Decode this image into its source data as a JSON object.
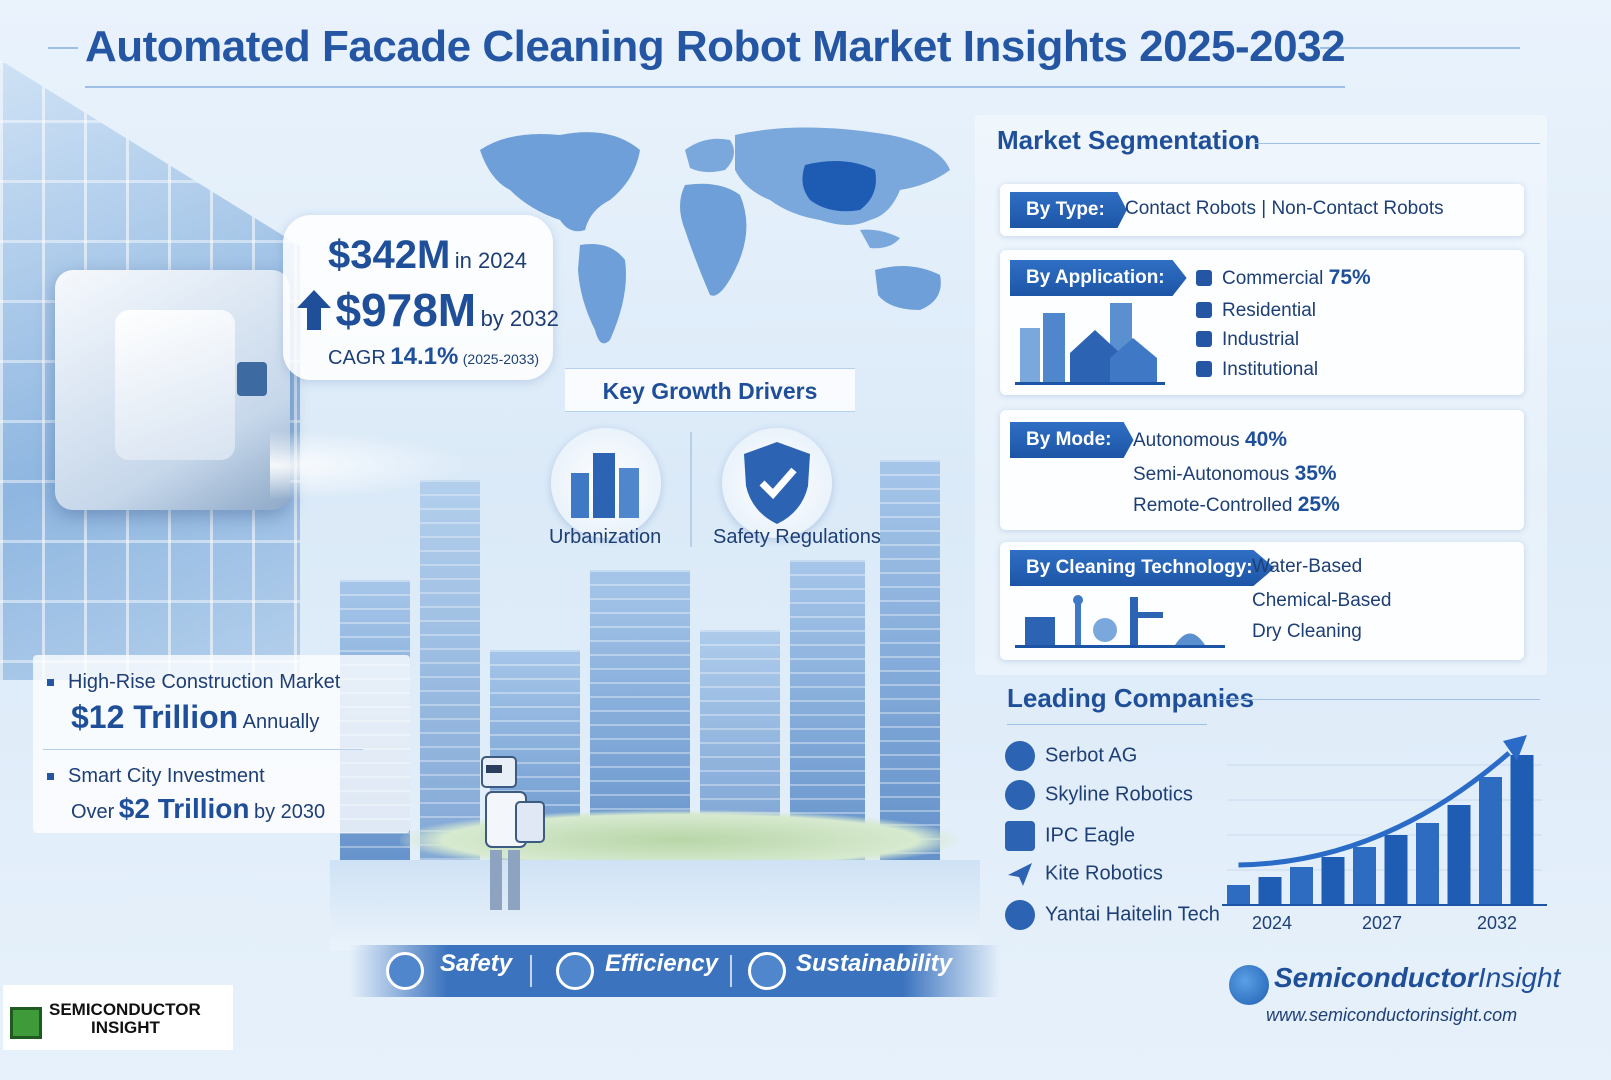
{
  "title": "Automated Facade Cleaning Robot Market Insights 2025-2032",
  "market_size": {
    "value_2024": "$342M",
    "label_2024": "in 2024",
    "value_2032": "$978M",
    "label_2032": "by 2032",
    "cagr_prefix": "CAGR",
    "cagr_value": "14.1%",
    "cagr_period": "(2025-2033)"
  },
  "key_growth_drivers": {
    "title": "Key Growth Drivers",
    "items": [
      "Urbanization",
      "Safety Regulations"
    ]
  },
  "left_stats": {
    "stat1_label": "High-Rise Construction Market",
    "stat1_value": "$12 Trillion",
    "stat1_suffix": "Annually",
    "stat2_label": "Smart City Investment",
    "stat2_prefix": "Over",
    "stat2_value": "$2 Trillion",
    "stat2_suffix": "by 2030"
  },
  "segmentation": {
    "title": "Market Segmentation",
    "by_type": {
      "tag": "By Type:",
      "text": "Contact Robots | Non-Contact Robots"
    },
    "by_application": {
      "tag": "By Application:",
      "items": [
        {
          "name": "Commercial",
          "value": "75%"
        },
        {
          "name": "Residential",
          "value": ""
        },
        {
          "name": "Industrial",
          "value": ""
        },
        {
          "name": "Institutional",
          "value": ""
        }
      ]
    },
    "by_mode": {
      "tag": "By Mode:",
      "items": [
        {
          "name": "Autonomous",
          "value": "40%"
        },
        {
          "name": "Semi-Autonomous",
          "value": "35%"
        },
        {
          "name": "Remote-Controlled",
          "value": "25%"
        }
      ]
    },
    "by_cleaning_technology": {
      "tag": "By Cleaning Technology:",
      "items": [
        "Water-Based",
        "Chemical-Based",
        "Dry Cleaning"
      ]
    }
  },
  "leading_companies": {
    "title": "Leading Companies",
    "items": [
      "Serbot AG",
      "Skyline Robotics",
      "IPC Eagle",
      "Kite Robotics",
      "Yantai Haitelin Tech"
    ]
  },
  "chart_data": {
    "type": "bar",
    "title": "",
    "xlabel": "",
    "ylabel": "",
    "x_tick_labels": [
      "2024",
      "2027",
      "2032"
    ],
    "values": [
      20,
      28,
      38,
      48,
      58,
      70,
      82,
      100,
      128,
      150
    ],
    "trend_arrow": true,
    "grid": true
  },
  "pillars": [
    "Safety",
    "Efficiency",
    "Sustainability"
  ],
  "brand": {
    "name_bold": "Semiconductor",
    "name_light": "Insight",
    "url": "www.semiconductorinsight.com",
    "logo_line1": "SEMICONDUCTOR",
    "logo_line2": "INSIGHT"
  },
  "colors": {
    "primary": "#2556a3",
    "accent": "#1d55a6",
    "background": "#dbeaf8"
  }
}
